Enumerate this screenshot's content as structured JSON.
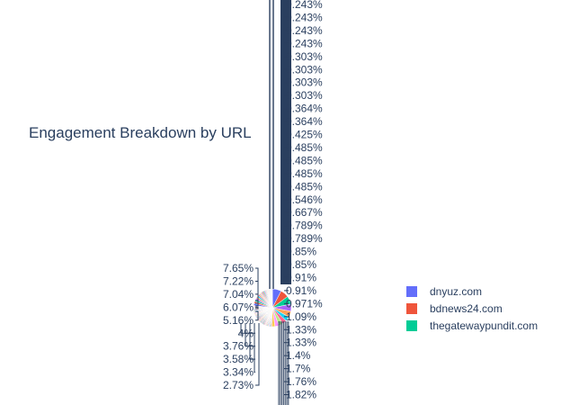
{
  "chart_data": {
    "type": "pie",
    "title": "Engagement Breakdown by URL",
    "legend_position": "right",
    "labels_left": [
      "7.65%",
      "7.22%",
      "7.04%",
      "6.07%",
      "5.16%",
      "4%",
      "3.76%",
      "3.58%",
      "3.34%",
      "2.73%"
    ],
    "labels_right": [
      "0.243%",
      "0.243%",
      "0.243%",
      "0.243%",
      "0.303%",
      "0.303%",
      "0.303%",
      "0.303%",
      "0.364%",
      "0.364%",
      "0.425%",
      "0.485%",
      "0.485%",
      "0.485%",
      "0.485%",
      "0.546%",
      "0.667%",
      "0.789%",
      "0.789%",
      "0.85%",
      "0.85%",
      "0.91%",
      "0.91%",
      "0.971%",
      "1.09%",
      "1.33%",
      "1.33%",
      "1.4%",
      "1.7%",
      "1.76%",
      "1.82%"
    ],
    "slice_colors": [
      "#636efa",
      "#ef553b",
      "#00cc96",
      "#ab63fa",
      "#ffa15a",
      "#19d3f3",
      "#ff6692",
      "#b6e880",
      "#ff97ff",
      "#fecb52"
    ],
    "legend": [
      {
        "name": "dnyuz.com",
        "color": "#636efa"
      },
      {
        "name": "bdnews24.com",
        "color": "#ef553b"
      },
      {
        "name": "thegatewaypundit.com",
        "color": "#00cc96"
      }
    ]
  }
}
